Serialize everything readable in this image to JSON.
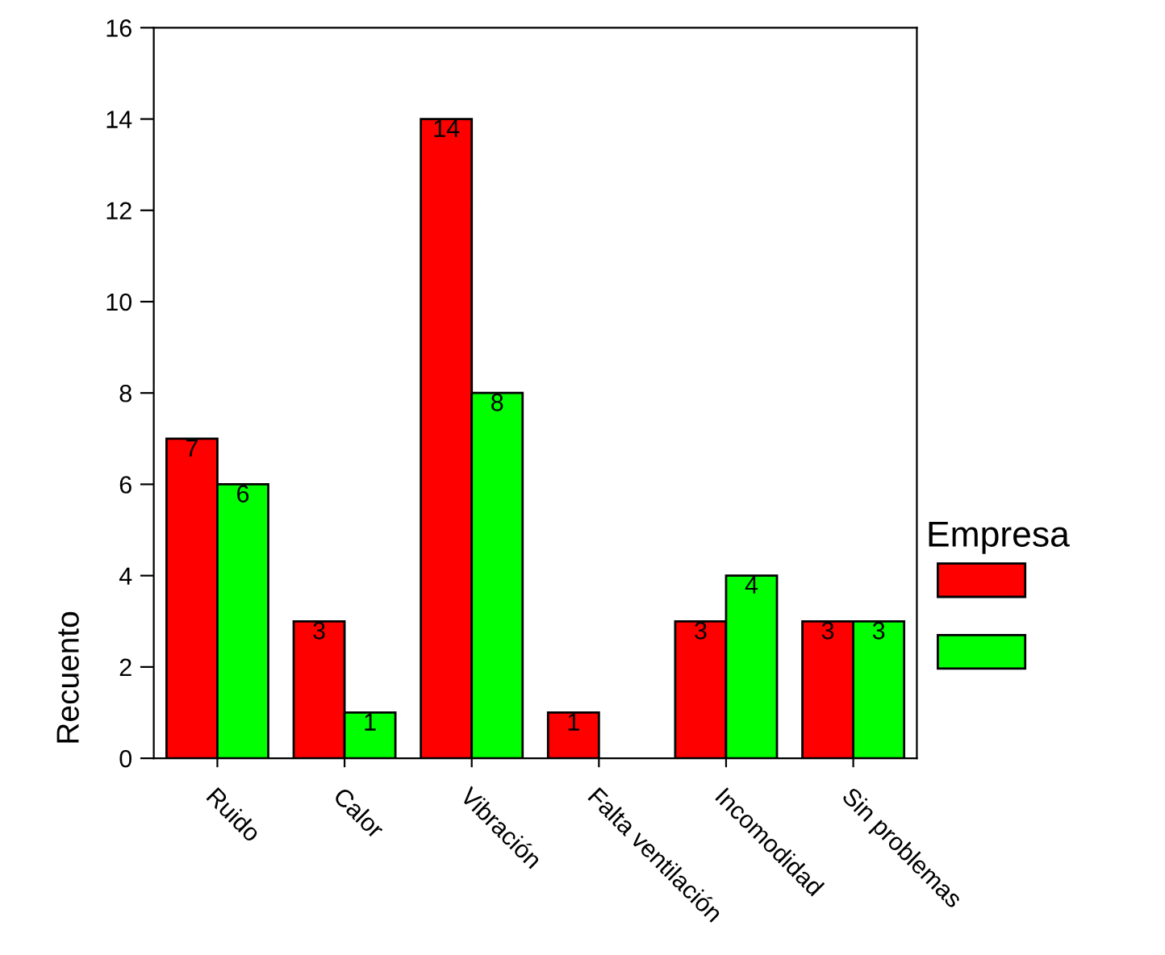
{
  "chart_data": {
    "type": "bar",
    "ylabel": "Recuento",
    "legend_title": "Empresa",
    "categories": [
      "Ruido",
      "Calor",
      "Vibración",
      "Falta ventilación",
      "Incomodidad",
      "Sin problemas"
    ],
    "series": [
      {
        "color": "#ff0000",
        "values": [
          7,
          3,
          14,
          1,
          3,
          3
        ]
      },
      {
        "color": "#00ff00",
        "values": [
          6,
          1,
          8,
          null,
          4,
          3
        ]
      }
    ],
    "ylim": [
      0,
      16
    ],
    "yticks": [
      0,
      2,
      4,
      6,
      8,
      10,
      12,
      14,
      16
    ],
    "data_labels": true,
    "grid": false
  }
}
